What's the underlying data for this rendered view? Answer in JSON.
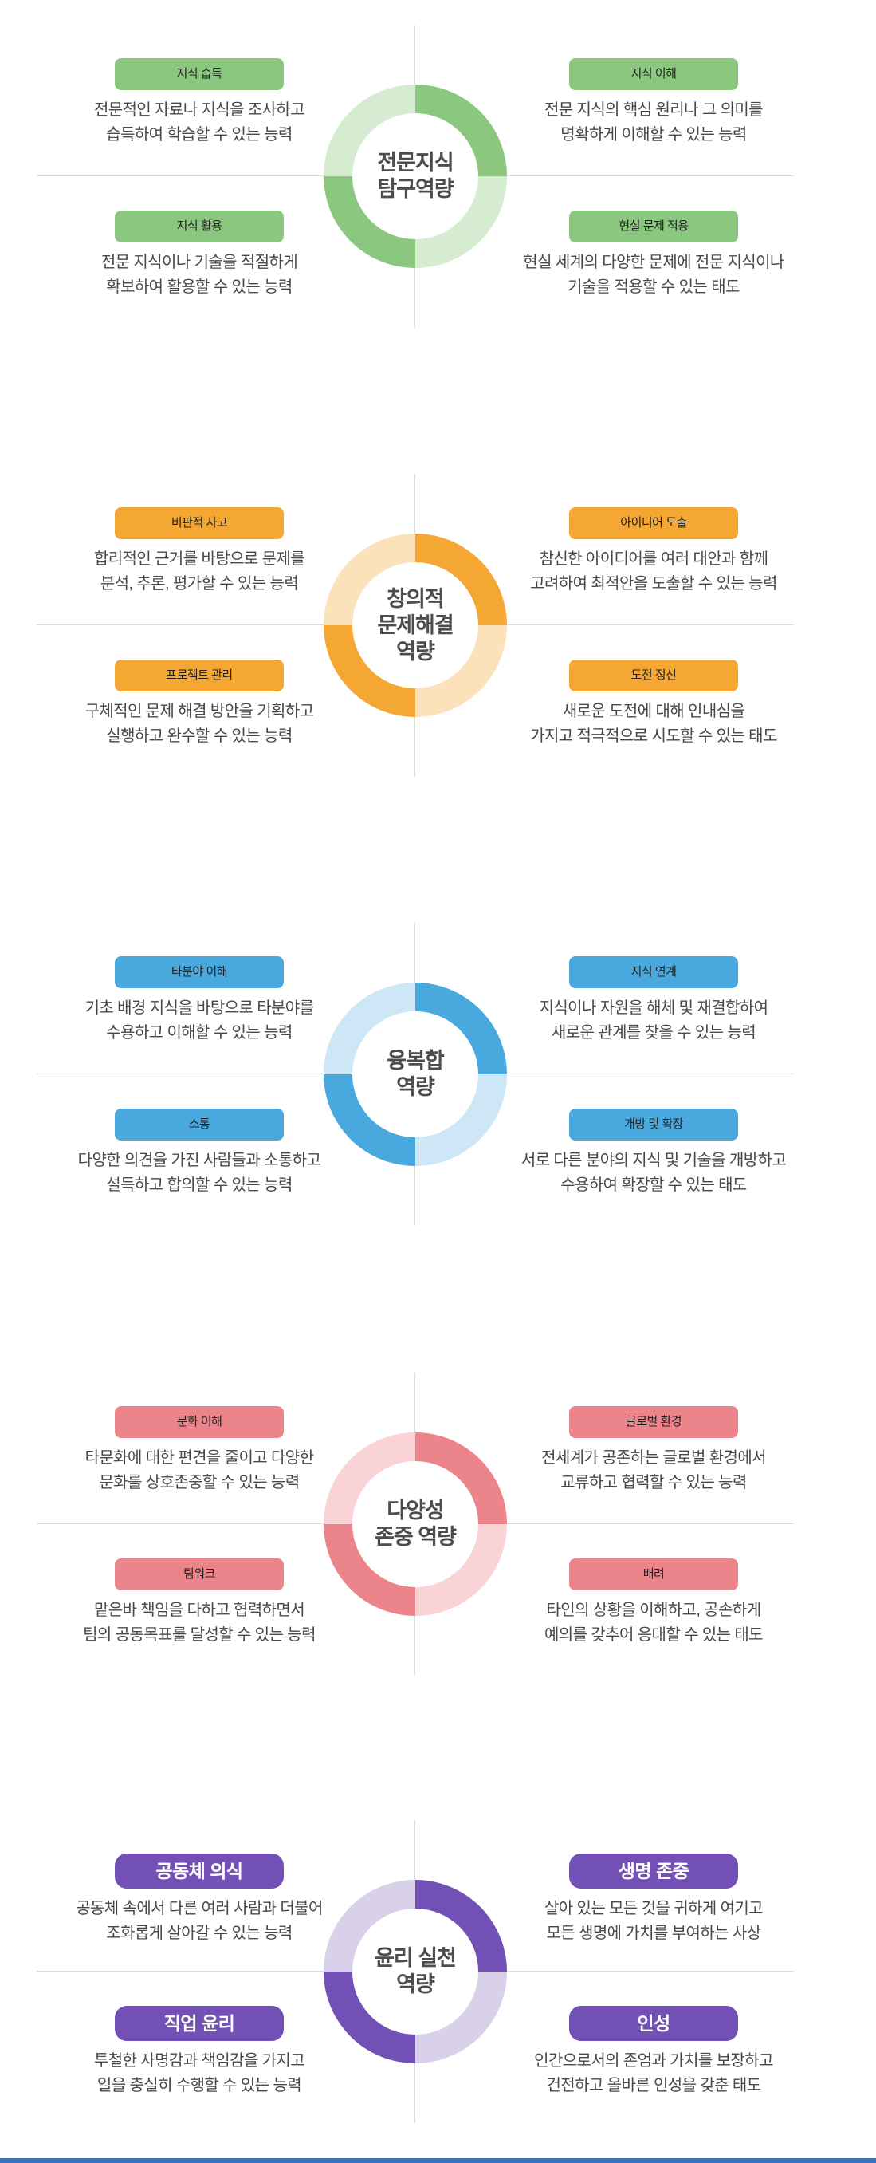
{
  "page": {
    "background": "#ffffff"
  },
  "footer": {
    "bar": "#3e73bb"
  },
  "sections": [
    {
      "name": "전문지식 탐구역량",
      "title": "전문지식\n탐구역량",
      "colors": {
        "dark": "#8bc77e",
        "light": "#d5ecd1",
        "badge_text": "#222222"
      },
      "quadrants": [
        {
          "badge": "지식 습득",
          "desc": "전문적인 자료나 지식을 조사하고\n습득하여 학습할 수 있는 능력"
        },
        {
          "badge": "지식 이해",
          "desc": "전문 지식의 핵심 원리나 그 의미를\n명확하게 이해할 수 있는 능력"
        },
        {
          "badge": "지식 활용",
          "desc": "전문 지식이나 기술을 적절하게\n확보하여 활용할 수 있는 능력"
        },
        {
          "badge": "현실 문제 적용",
          "desc": "현실 세계의 다양한 문제에 전문 지식이나\n기술을 적용할 수 있는 태도"
        }
      ]
    },
    {
      "name": "창의적 문제해결 역량",
      "title": "창의적\n문제해결\n역량",
      "colors": {
        "dark": "#f5a733",
        "light": "#fbe2bb",
        "badge_text": "#222222"
      },
      "quadrants": [
        {
          "badge": "비판적 사고",
          "desc": "합리적인 근거를 바탕으로 문제를\n분석, 추론, 평가할 수 있는 능력"
        },
        {
          "badge": "아이디어 도출",
          "desc": "참신한 아이디어를 여러 대안과 함께\n고려하여 최적안을 도출할 수 있는 능력"
        },
        {
          "badge": "프로젝트 관리",
          "desc": "구체적인 문제 해결 방안을 기획하고\n실행하고 완수할 수 있는 능력"
        },
        {
          "badge": "도전 정신",
          "desc": "새로운 도전에 대해 인내심을\n가지고 적극적으로 시도할 수 있는 태도"
        }
      ]
    },
    {
      "name": "융복합 역량",
      "title": "융복합\n역량",
      "colors": {
        "dark": "#49a8de",
        "light": "#cee7f6",
        "badge_text": "#222222"
      },
      "quadrants": [
        {
          "badge": "타분야 이해",
          "desc": "기초 배경 지식을 바탕으로 타분야를\n수용하고 이해할 수 있는 능력"
        },
        {
          "badge": "지식 연계",
          "desc": "지식이나 자원을 해체 및 재결합하여\n새로운 관계를 찾을 수 있는 능력"
        },
        {
          "badge": "소통",
          "desc": "다양한 의견을 가진 사람들과 소통하고\n설득하고 합의할 수 있는 능력"
        },
        {
          "badge": "개방 및 확장",
          "desc": "서로 다른 분야의 지식 및 기술을 개방하고\n수용하여 확장할 수 있는 태도"
        }
      ]
    },
    {
      "name": "다양성 존중 역량",
      "title": "다양성\n존중 역량",
      "colors": {
        "dark": "#ec858b",
        "light": "#f9d3d6",
        "badge_text": "#222222"
      },
      "quadrants": [
        {
          "badge": "문화 이해",
          "desc": "타문화에 대한 편견을 줄이고 다양한\n문화를 상호존중할 수 있는 능력"
        },
        {
          "badge": "글로벌 환경",
          "desc": "전세계가 공존하는 글로벌 환경에서\n교류하고 협력할 수 있는 능력"
        },
        {
          "badge": "팀워크",
          "desc": "맡은바 책임을 다하고 협력하면서\n팀의 공동목표를 달성할 수 있는 능력"
        },
        {
          "badge": "배려",
          "desc": "타인의 상황을 이해하고, 공손하게\n예의를 갖추어 응대할 수 있는 태도"
        }
      ]
    },
    {
      "name": "윤리 실천 역량",
      "title": "윤리 실천\n역량",
      "colors": {
        "dark": "#7250b5",
        "light": "#d9d1e9",
        "badge_text": "#ffffff"
      },
      "quadrants": [
        {
          "badge": "공동체 의식",
          "desc": "공동체 속에서 다른 여러 사람과 더불어\n조화롭게 살아갈 수 있는 능력"
        },
        {
          "badge": "생명 존중",
          "desc": "살아 있는 모든 것을 귀하게 여기고\n모든 생명에 가치를 부여하는 사상"
        },
        {
          "badge": "직업 윤리",
          "desc": "투철한 사명감과 책임감을 가지고\n일을 충실히 수행할 수 있는 능력"
        },
        {
          "badge": "인성",
          "desc": "인간으로서의 존엄과 가치를 보장하고\n건전하고 올바른 인성을 갖춘 태도"
        }
      ]
    }
  ]
}
